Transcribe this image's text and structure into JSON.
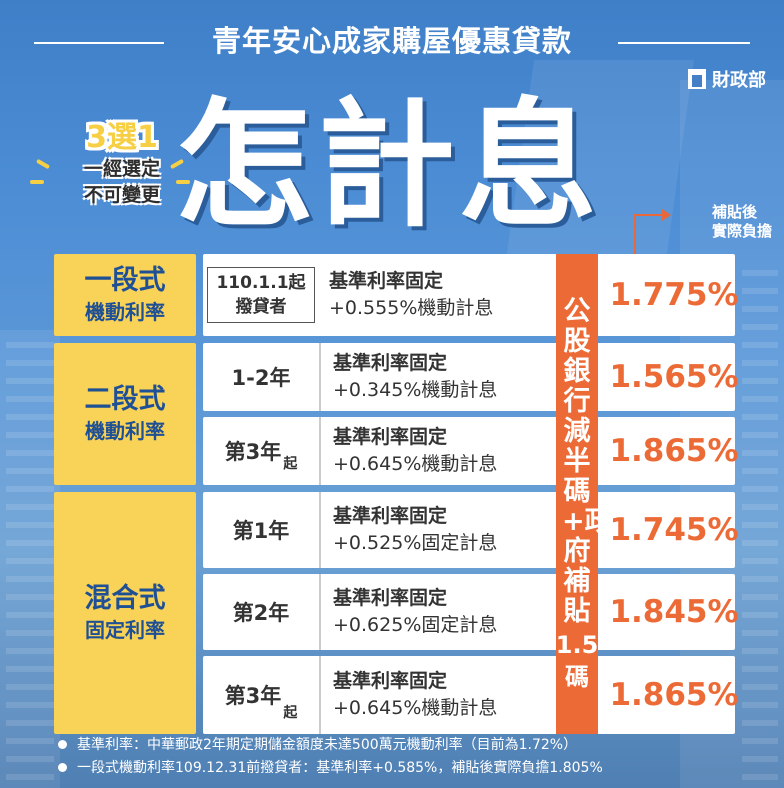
{
  "header": {
    "title": "青年安心成家購屋優惠貸款",
    "agency": "財政部"
  },
  "badge": {
    "title": "3選1",
    "line1": "一經選定",
    "line2": "不可變更"
  },
  "headline": "怎計息",
  "note": {
    "line1": "補貼後",
    "line2": "實際負擔"
  },
  "side_label": {
    "main": "公股銀行減半碼+政府補貼",
    "sub1": "1.5",
    "sub2": "碼"
  },
  "categories": [
    {
      "name": "一段式",
      "type": "機動利率"
    },
    {
      "name": "二段式",
      "type": "機動利率"
    },
    {
      "name": "混合式",
      "type": "固定利率"
    }
  ],
  "rows": [
    {
      "cond_line1": "110.1.1起",
      "cond_line2": "撥貸者",
      "desc1": "基準利率固定",
      "desc2": "+0.555%機動計息",
      "rate": "1.775%"
    },
    {
      "cond": "1-2年",
      "cond_suffix": "",
      "desc1": "基準利率固定",
      "desc2": "+0.345%機動計息",
      "rate": "1.565%"
    },
    {
      "cond": "第3年",
      "cond_suffix": "起",
      "desc1": "基準利率固定",
      "desc2": "+0.645%機動計息",
      "rate": "1.865%"
    },
    {
      "cond": "第1年",
      "cond_suffix": "",
      "desc1": "基準利率固定",
      "desc2": "+0.525%固定計息",
      "rate": "1.745%"
    },
    {
      "cond": "第2年",
      "cond_suffix": "",
      "desc1": "基準利率固定",
      "desc2": "+0.625%固定計息",
      "rate": "1.845%"
    },
    {
      "cond": "第3年",
      "cond_suffix": "起",
      "desc1": "基準利率固定",
      "desc2": "+0.645%機動計息",
      "rate": "1.865%"
    }
  ],
  "footnotes": [
    "基準利率：中華郵政2年期定期儲金額度未達500萬元機動利率（目前為1.72%）",
    "一段式機動利率109.12.31前撥貸者：基準利率+0.585%，補貼後實際負擔1.805%"
  ],
  "colors": {
    "background": "#4b8cd4",
    "category": "#f8d357",
    "accent": "#ec6a35",
    "navy": "#1f4f94"
  }
}
